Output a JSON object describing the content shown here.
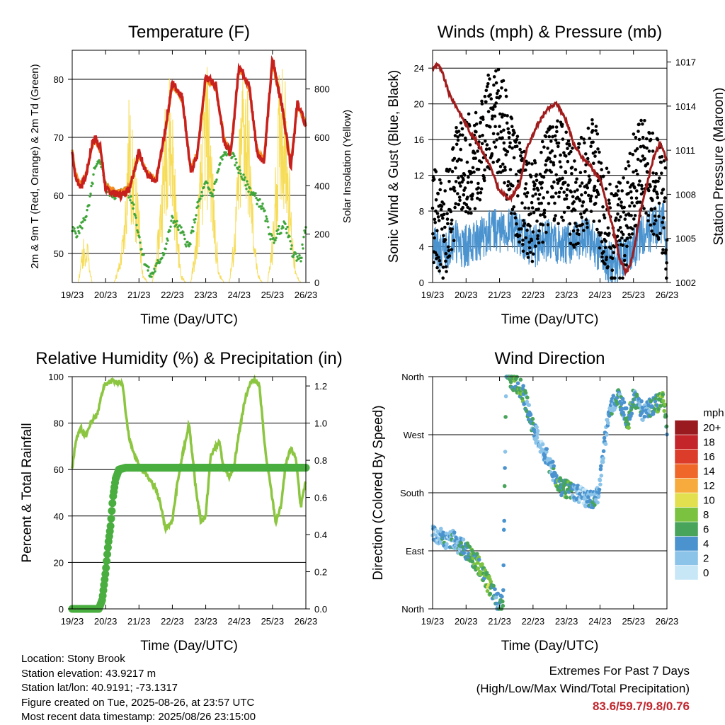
{
  "colors": {
    "t2m": "#c8211d",
    "t9m": "#f28c1e",
    "td": "#3fa53a",
    "solar": "#f6dc57",
    "wind": "#4a93cf",
    "gust": "#000000",
    "pressure": "#a11c1c",
    "rh": "#8cc641",
    "precip": "#49ae3f"
  },
  "info": {
    "location": "Location: Stony Brook",
    "elevation": "Station elevation: 43.9217 m",
    "latlon": "Station lat/lon: 40.9191; -73.1317",
    "created": "Figure created on Tue, 2025-08-26, at 23:57 UTC",
    "recent": "Most recent data timestamp: 2025/08/26 23:15:00"
  },
  "extremes": {
    "title": "Extremes For Past 7 Days",
    "subtitle": "(High/Low/Max Wind/Total Precipitation)",
    "values": "83.6/59.7/9.8/0.76"
  },
  "chart_data": [
    {
      "type": "line",
      "title": "Temperature (F)",
      "xlabel": "Time (Day/UTC)",
      "ylabel": "2m & 9m T (Red, Orange) & 2m Td (Green)",
      "y2label": "Solar Insolation (Yellow)",
      "xticks": [
        "19/23",
        "20/23",
        "21/23",
        "22/23",
        "23/23",
        "24/23",
        "25/23",
        "26/23"
      ],
      "xlim": [
        0,
        7
      ],
      "ylim": [
        45,
        85
      ],
      "yticks": [
        50,
        60,
        70,
        80
      ],
      "y2lim": [
        0,
        960
      ],
      "y2ticks": [
        0,
        200,
        400,
        600,
        800
      ],
      "grid": true,
      "series": [
        {
          "role": "t2m",
          "x": [
            0,
            0.1,
            0.25,
            0.4,
            0.6,
            0.7,
            0.85,
            1.0,
            1.2,
            1.45,
            1.7,
            2.0,
            2.25,
            2.5,
            2.75,
            3.0,
            3.3,
            3.55,
            3.75,
            4.0,
            4.3,
            4.55,
            4.75,
            5.0,
            5.3,
            5.55,
            5.75,
            6.0,
            6.3,
            6.55,
            6.75,
            7.0
          ],
          "values": [
            67.5,
            63,
            61.5,
            63,
            69,
            70,
            68,
            61,
            60.5,
            60,
            61,
            67.5,
            63.5,
            62,
            70,
            79.5,
            77,
            64,
            67,
            80.5,
            79,
            69.5,
            67,
            82.5,
            79,
            67,
            66,
            83.5,
            75,
            65,
            76,
            72
          ]
        },
        {
          "role": "t9m",
          "x": [
            0,
            0.1,
            0.25,
            0.4,
            0.6,
            0.7,
            0.85,
            1.0,
            1.2,
            1.45,
            1.7,
            2.0,
            2.25,
            2.5,
            2.75,
            3.0,
            3.3,
            3.55,
            3.75,
            4.0,
            4.3,
            4.55,
            4.75,
            5.0,
            5.3,
            5.55,
            5.75,
            6.0,
            6.3,
            6.55,
            6.75,
            7.0
          ],
          "values": [
            68,
            63.5,
            62,
            63.5,
            68.5,
            69.5,
            67.5,
            61.5,
            61,
            60.5,
            61.5,
            67,
            64,
            62.5,
            69.5,
            79,
            76.5,
            64.5,
            67.5,
            80,
            78.5,
            70,
            67.5,
            82,
            78.5,
            67.5,
            66.5,
            83,
            74.5,
            65.5,
            75.5,
            72.5
          ]
        },
        {
          "role": "td",
          "x": [
            0,
            0.15,
            0.3,
            0.5,
            0.65,
            0.85,
            1.05,
            1.25,
            1.45,
            1.65,
            1.85,
            2.0,
            2.15,
            2.35,
            2.55,
            2.8,
            3.0,
            3.25,
            3.5,
            3.75,
            4.0,
            4.2,
            4.45,
            4.7,
            4.95,
            5.2,
            5.45,
            5.7,
            6.0,
            6.2,
            6.4,
            6.6,
            6.85,
            7.0
          ],
          "values": [
            54,
            53.5,
            55,
            58,
            64,
            66,
            61,
            60,
            60.5,
            61,
            58,
            53,
            49,
            46,
            48,
            51,
            56,
            54,
            51,
            58,
            62,
            60,
            66,
            68,
            65,
            62,
            60,
            58,
            52,
            54,
            55,
            50,
            49,
            55
          ]
        },
        {
          "role": "solar",
          "x": [
            0,
            0.05,
            0.18,
            0.28,
            0.34,
            0.4,
            0.46,
            0.55,
            0.6,
            0.75,
            1.25,
            1.42,
            1.55,
            1.7,
            1.85,
            2.0,
            2.12,
            2.25,
            2.4,
            2.55,
            2.7,
            2.85,
            3.0,
            3.12,
            3.25,
            3.4,
            3.55,
            3.7,
            3.85,
            4.0,
            4.12,
            4.25,
            4.4,
            4.55,
            4.7,
            4.85,
            5.0,
            5.12,
            5.25,
            5.4,
            5.55,
            5.7,
            5.85,
            6.0,
            6.12,
            6.25,
            6.4,
            6.55,
            6.7,
            6.85,
            7.0
          ],
          "values": [
            0,
            0,
            0,
            120,
            180,
            90,
            170,
            40,
            0,
            0,
            0,
            90,
            240,
            720,
            520,
            300,
            40,
            0,
            0,
            160,
            480,
            860,
            730,
            320,
            40,
            0,
            0,
            170,
            520,
            860,
            740,
            330,
            40,
            0,
            0,
            190,
            560,
            900,
            780,
            340,
            40,
            0,
            0,
            180,
            540,
            940,
            760,
            320,
            40,
            0,
            0
          ]
        }
      ]
    },
    {
      "type": "line",
      "title": "Winds (mph) & Pressure (mb)",
      "xlabel": "Time (Day/UTC)",
      "ylabel": "Sonic Wind & Gust (Blue, Black)",
      "y2label": "Station Pressure (Maroon)",
      "xticks": [
        "19/23",
        "20/23",
        "21/23",
        "22/23",
        "23/23",
        "24/23",
        "25/23",
        "26/23"
      ],
      "xlim": [
        0,
        7
      ],
      "ylim": [
        0,
        26
      ],
      "yticks": [
        0,
        4,
        8,
        12,
        16,
        20,
        24
      ],
      "y2lim": [
        1002,
        1017.8
      ],
      "y2ticks": [
        1002,
        1005,
        1008,
        1011,
        1014,
        1017
      ],
      "grid": true,
      "series": [
        {
          "role": "wind",
          "x": [
            0,
            0.3,
            0.6,
            0.9,
            1.2,
            1.5,
            1.8,
            2.1,
            2.4,
            2.7,
            3.0,
            3.3,
            3.6,
            3.9,
            4.2,
            4.5,
            4.8,
            5.1,
            5.4,
            5.7,
            6.0,
            6.3,
            6.6,
            6.9,
            7.0
          ],
          "values": [
            4,
            3,
            5,
            4,
            4.5,
            5,
            6,
            5.5,
            6,
            5,
            4,
            4.5,
            5,
            4,
            4.5,
            5,
            4.5,
            3,
            2,
            3,
            4,
            5.5,
            6,
            6.5,
            3
          ]
        },
        {
          "role": "gust",
          "x": [
            0,
            0.3,
            0.6,
            0.9,
            1.2,
            1.5,
            1.8,
            2.1,
            2.4,
            2.7,
            3.0,
            3.3,
            3.6,
            3.9,
            4.2,
            4.5,
            4.8,
            5.1,
            5.4,
            5.7,
            6.0,
            6.3,
            6.6,
            6.9,
            7.0
          ],
          "values": [
            8,
            5,
            10,
            14,
            13,
            16,
            19,
            17,
            12,
            9,
            8,
            10,
            13,
            12,
            9,
            11,
            13,
            8,
            5,
            6,
            12,
            13,
            11,
            9,
            5
          ]
        },
        {
          "role": "pressure",
          "x": [
            0,
            0.15,
            0.3,
            0.5,
            0.8,
            1.1,
            1.4,
            1.7,
            2.0,
            2.3,
            2.6,
            2.8,
            3.1,
            3.4,
            3.7,
            4.0,
            4.2,
            4.45,
            4.7,
            5.0,
            5.3,
            5.6,
            5.8,
            6.0,
            6.2,
            6.4,
            6.6,
            6.8,
            7.0
          ],
          "values": [
            1016.5,
            1016.9,
            1016.2,
            1014.8,
            1013.6,
            1012.3,
            1011.3,
            1010,
            1008.2,
            1007.7,
            1008.6,
            1011,
            1012.6,
            1013.7,
            1014.2,
            1013,
            1011.5,
            1010.5,
            1010,
            1009,
            1006.5,
            1003.5,
            1002.6,
            1004,
            1006.8,
            1008.6,
            1010.5,
            1011.5,
            1010.3
          ]
        }
      ]
    },
    {
      "type": "line",
      "title": "Relative Humidity (%) & Precipitation (in)",
      "xlabel": "Time (Day/UTC)",
      "ylabel": "Percent & Total Rainfall",
      "xticks": [
        "19/23",
        "20/23",
        "21/23",
        "22/23",
        "23/23",
        "24/23",
        "25/23",
        "26/23"
      ],
      "xlim": [
        0,
        7
      ],
      "ylim": [
        0,
        100
      ],
      "yticks": [
        0,
        20,
        40,
        60,
        80,
        100
      ],
      "y2lim": [
        0,
        1.25
      ],
      "y2ticks": [
        0.0,
        0.2,
        0.4,
        0.6,
        0.8,
        1.0,
        1.2
      ],
      "grid": true,
      "series": [
        {
          "role": "rh",
          "x": [
            0,
            0.1,
            0.25,
            0.4,
            0.55,
            0.75,
            0.95,
            1.15,
            1.3,
            1.5,
            1.7,
            1.9,
            2.1,
            2.3,
            2.5,
            2.65,
            2.8,
            3.0,
            3.15,
            3.3,
            3.5,
            3.7,
            3.85,
            4.0,
            4.15,
            4.4,
            4.55,
            4.7,
            4.85,
            5.0,
            5.2,
            5.4,
            5.6,
            5.8,
            5.95,
            6.1,
            6.25,
            6.4,
            6.55,
            6.7,
            6.85,
            7.0
          ],
          "values": [
            60,
            72,
            78,
            74,
            80,
            84,
            96,
            98,
            98,
            97,
            74,
            65,
            60,
            56,
            52,
            45,
            34,
            38,
            54,
            66,
            80,
            52,
            38,
            40,
            66,
            72,
            60,
            57,
            62,
            76,
            92,
            99,
            97,
            66,
            52,
            37,
            44,
            62,
            69,
            65,
            44,
            55
          ]
        },
        {
          "role": "precip",
          "x": [
            0,
            0.3,
            0.6,
            0.8,
            0.9,
            1.0,
            1.08,
            1.15,
            1.22,
            1.3,
            1.4,
            1.6,
            2.0,
            3.0,
            4.0,
            5.0,
            6.0,
            7.0
          ],
          "values": [
            0,
            0,
            0,
            0,
            0.05,
            0.2,
            0.35,
            0.45,
            0.6,
            0.7,
            0.75,
            0.76,
            0.76,
            0.76,
            0.76,
            0.76,
            0.76,
            0.76
          ]
        }
      ]
    },
    {
      "type": "scatter",
      "title": "Wind Direction",
      "xlabel": "Time (Day/UTC)",
      "ylabel": "Direction (Colored By Speed)",
      "xticks": [
        "19/23",
        "20/23",
        "21/23",
        "22/23",
        "23/23",
        "24/23",
        "25/23",
        "26/23"
      ],
      "xlim": [
        0,
        7
      ],
      "ylim": [
        0,
        360
      ],
      "yticks": [
        "North",
        "East",
        "South",
        "West",
        "North"
      ],
      "ytick_values": [
        0,
        90,
        180,
        270,
        360
      ],
      "colorbar_title": "mph",
      "colorbar_labels": [
        "0",
        "2",
        "4",
        "6",
        "8",
        "10",
        "12",
        "14",
        "16",
        "18",
        "20+"
      ],
      "colorbar_colors": [
        "#c7e7f7",
        "#8cc4e9",
        "#4a93cf",
        "#47a45a",
        "#7cc241",
        "#e3e050",
        "#f6ab3c",
        "#f0672a",
        "#dc3d2a",
        "#c4252b",
        "#9a1b1f"
      ],
      "series": [
        {
          "role": "direction",
          "x": [
            0,
            0.15,
            0.3,
            0.45,
            0.6,
            0.75,
            0.9,
            1.05,
            1.2,
            1.35,
            1.5,
            1.65,
            1.8,
            1.95,
            2.1,
            2.2,
            2.35,
            2.5,
            2.65,
            2.8,
            2.95,
            3.1,
            3.25,
            3.4,
            3.55,
            3.7,
            3.85,
            4.0,
            4.15,
            4.3,
            4.5,
            4.65,
            4.8,
            4.95,
            5.1,
            5.25,
            5.4,
            5.55,
            5.7,
            5.85,
            6.0,
            6.15,
            6.3,
            6.45,
            6.6,
            6.75,
            6.9,
            7.0
          ],
          "values": [
            120,
            112,
            110,
            105,
            108,
            100,
            95,
            88,
            80,
            70,
            55,
            40,
            25,
            10,
            5,
            360,
            355,
            350,
            340,
            320,
            290,
            270,
            250,
            235,
            220,
            200,
            190,
            185,
            182,
            180,
            175,
            170,
            168,
            180,
            240,
            300,
            320,
            330,
            310,
            290,
            330,
            320,
            300,
            310,
            315,
            320,
            330,
            280
          ],
          "speed": [
            3,
            2,
            4,
            2,
            4,
            3,
            5,
            4,
            6,
            7,
            6,
            8,
            5,
            4,
            6,
            3,
            6,
            5,
            7,
            4,
            5,
            3,
            2,
            4,
            3,
            6,
            5,
            7,
            4,
            3,
            2,
            3,
            4,
            3,
            2,
            4,
            3,
            5,
            4,
            6,
            5,
            4,
            3,
            4,
            5,
            6,
            8,
            4
          ]
        }
      ]
    }
  ]
}
